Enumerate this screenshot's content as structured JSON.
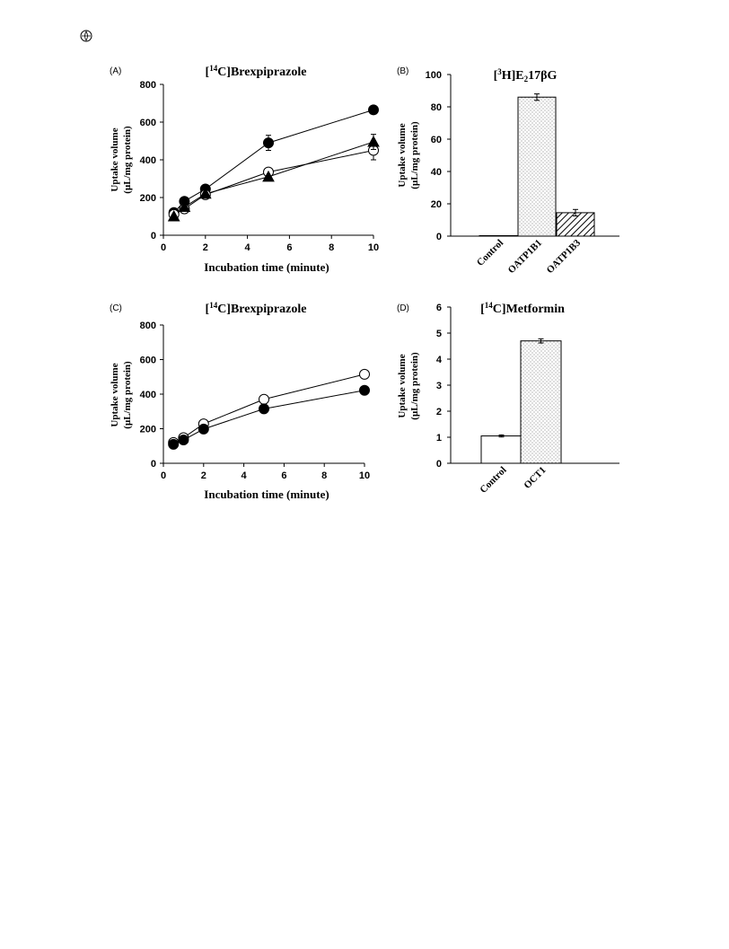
{
  "corner_icon": "journal-logo-icon",
  "colors": {
    "ink": "#000000",
    "open_fill": "#ffffff",
    "dot_fill": "#bdbdbd"
  },
  "chart_data": [
    {
      "id": "A",
      "panel_label": "(A)",
      "type": "line",
      "title_pre": "[",
      "title_sup": "14",
      "title_post": "C]Brexpiprazole",
      "xlabel": "Incubation time (minute)",
      "ylabel_line1": "Uptake volume",
      "ylabel_line2": "(μL/mg protein)",
      "xlim": [
        0,
        10
      ],
      "ylim": [
        0,
        800
      ],
      "xticks": [
        0,
        2,
        4,
        6,
        8,
        10
      ],
      "yticks": [
        0,
        200,
        400,
        600,
        800
      ],
      "series": [
        {
          "marker": "filled-circle",
          "x": [
            0.5,
            1,
            2,
            5,
            10
          ],
          "y": [
            120,
            180,
            245,
            490,
            665
          ],
          "err": [
            0,
            0,
            0,
            40,
            0
          ]
        },
        {
          "marker": "open-circle",
          "x": [
            0.5,
            1,
            2,
            5,
            10
          ],
          "y": [
            110,
            140,
            215,
            335,
            450
          ],
          "err": [
            0,
            0,
            0,
            0,
            50
          ]
        },
        {
          "marker": "filled-triangle",
          "x": [
            0.5,
            1,
            2,
            5,
            10
          ],
          "y": [
            100,
            150,
            220,
            310,
            495
          ],
          "err": [
            0,
            0,
            0,
            0,
            40
          ]
        }
      ]
    },
    {
      "id": "B",
      "panel_label": "(B)",
      "type": "bar",
      "title_pre": "[",
      "title_sup": "3",
      "title_mid": "H]E",
      "title_sub": "2",
      "title_post": "17βG",
      "ylabel_line1": "Uptake volume",
      "ylabel_line2": "(μL/mg protein)",
      "ylim": [
        0,
        100
      ],
      "yticks": [
        0,
        20,
        40,
        60,
        80,
        100
      ],
      "categories": [
        "Control",
        "OATP1B1",
        "OATP1B3"
      ],
      "values": [
        0.3,
        86,
        14.5
      ],
      "err": [
        0,
        2,
        2
      ],
      "fills": [
        "open",
        "dots",
        "hatch"
      ]
    },
    {
      "id": "C",
      "panel_label": "(C)",
      "type": "line",
      "title_pre": "[",
      "title_sup": "14",
      "title_post": "C]Brexpiprazole",
      "xlabel": "Incubation time (minute)",
      "ylabel_line1": "Uptake volume",
      "ylabel_line2": "(μL/mg protein)",
      "xlim": [
        0,
        10
      ],
      "ylim": [
        0,
        800
      ],
      "xticks": [
        0,
        2,
        4,
        6,
        8,
        10
      ],
      "yticks": [
        0,
        200,
        400,
        600,
        800
      ],
      "series": [
        {
          "marker": "open-circle",
          "x": [
            0.5,
            1,
            2,
            5,
            10
          ],
          "y": [
            120,
            148,
            228,
            370,
            515
          ],
          "err": [
            0,
            0,
            0,
            0,
            0
          ]
        },
        {
          "marker": "filled-circle",
          "x": [
            0.5,
            1,
            2,
            5,
            10
          ],
          "y": [
            110,
            135,
            198,
            315,
            422
          ],
          "err": [
            0,
            0,
            0,
            0,
            0
          ]
        }
      ]
    },
    {
      "id": "D",
      "panel_label": "(D)",
      "type": "bar",
      "title_pre": "[",
      "title_sup": "14",
      "title_post": "C]Metformin",
      "ylabel_line1": "Uptake volume",
      "ylabel_line2": "(μL/mg protein)",
      "ylim": [
        0,
        6
      ],
      "yticks": [
        0,
        1,
        2,
        3,
        4,
        5,
        6
      ],
      "categories": [
        "Control",
        "OCT1"
      ],
      "values": [
        1.05,
        4.7
      ],
      "err": [
        0.04,
        0.08
      ],
      "fills": [
        "open",
        "dots"
      ]
    }
  ]
}
